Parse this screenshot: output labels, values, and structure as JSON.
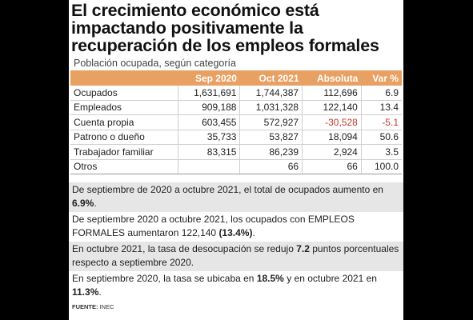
{
  "headline": {
    "line1": "El crecimiento económico está",
    "line2": "impactando positivamente la",
    "line3": "recuperación de los empleos formales"
  },
  "subtitle": "Población ocupada, según categoría",
  "table": {
    "headers": [
      "",
      "Sep 2020",
      "Oct 2021",
      "Absoluta",
      "Var %"
    ],
    "rows": [
      {
        "category": "Ocupados",
        "sep2020": "1,631,691",
        "oct2021": "1,744,387",
        "absoluta": "112,696",
        "var": "6.9",
        "negative": false
      },
      {
        "category": "Empleados",
        "sep2020": "909,188",
        "oct2021": "1,031,328",
        "absoluta": "122,140",
        "var": "13.4",
        "negative": false
      },
      {
        "category": "Cuenta propia",
        "sep2020": "603,455",
        "oct2021": "572,927",
        "absoluta": "-30,528",
        "var": "-5.1",
        "negative": true
      },
      {
        "category": "Patrono o dueño",
        "sep2020": "35,733",
        "oct2021": "53,827",
        "absoluta": "18,094",
        "var": "50.6",
        "negative": false
      },
      {
        "category": "Trabajador familiar",
        "sep2020": "83,315",
        "oct2021": "86,239",
        "absoluta": "2,924",
        "var": "3.5",
        "negative": false
      },
      {
        "category": "Otros",
        "sep2020": "",
        "oct2021": "66",
        "absoluta": "66",
        "var": "100.0",
        "negative": false
      }
    ]
  },
  "notes": [
    {
      "pre": "De septiembre de 2020 a octubre 2021, el total de ocupados aumento en ",
      "bold": "6.9%",
      "post": "."
    },
    {
      "pre": "De septiembre 2020 a octubre 2021, los ocupados con EMPLEOS FORMALES aumentaron 122,140 ",
      "bold": "(13.4%)",
      "post": "."
    },
    {
      "pre": "En octubre 2021, la tasa de desocupación se redujo ",
      "bold": "7.2",
      "post": " puntos porcentuales respecto a septiembre 2020."
    },
    {
      "pre": "En septiembre 2020, la tasa se ubicaba en ",
      "bold": "18.5%",
      "mid": " y en octubre 2021 en ",
      "bold2": "11.3%",
      "post": "."
    }
  ],
  "source": {
    "label": "FUENTE:",
    "value": "INEC"
  },
  "colors": {
    "header_bg": "#e8a063",
    "negative": "#c0392b",
    "note_shade": "#e6e6e6",
    "background": "#000000"
  }
}
